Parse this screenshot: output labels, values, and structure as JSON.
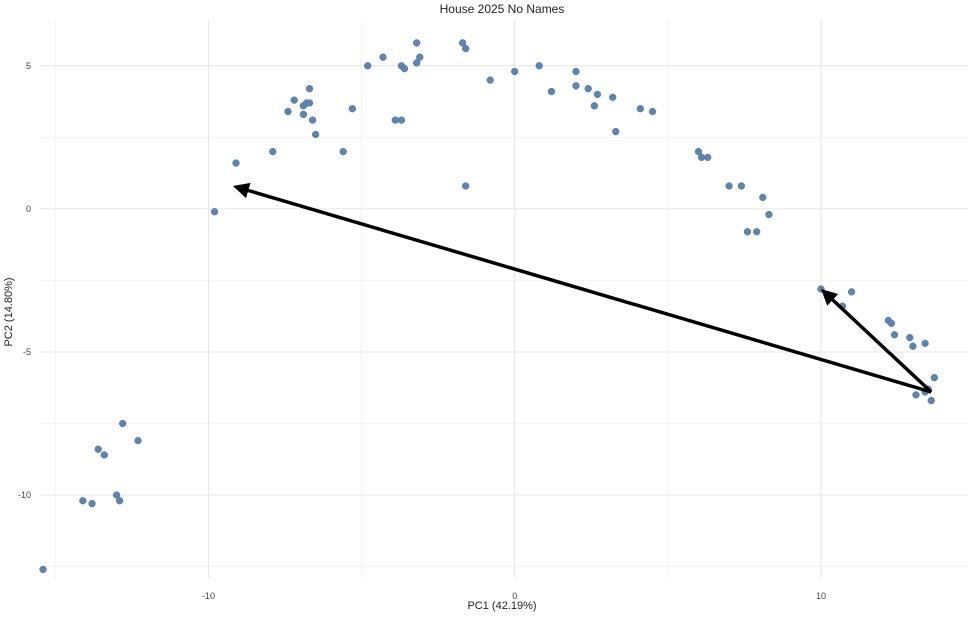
{
  "chart_data": {
    "type": "scatter",
    "title": "House 2025 No Names",
    "xlabel": "PC1 (42.19%)",
    "ylabel": "PC2 (14.80%)",
    "xlim": [
      -15.5,
      14.8
    ],
    "ylim": [
      -12.9,
      6.6
    ],
    "xticks": [
      -10,
      0,
      10
    ],
    "yticks": [
      5,
      0,
      -5,
      -10
    ],
    "grid": true,
    "point_color": "#5f84ad",
    "points": [
      {
        "x": -15.4,
        "y": -12.6
      },
      {
        "x": -14.1,
        "y": -10.2
      },
      {
        "x": -13.8,
        "y": -10.3
      },
      {
        "x": -13.0,
        "y": -10.0
      },
      {
        "x": -12.9,
        "y": -10.2
      },
      {
        "x": -13.6,
        "y": -8.4
      },
      {
        "x": -13.4,
        "y": -8.6
      },
      {
        "x": -12.8,
        "y": -7.5
      },
      {
        "x": -12.3,
        "y": -8.1
      },
      {
        "x": -9.8,
        "y": -0.1
      },
      {
        "x": -9.1,
        "y": 1.6
      },
      {
        "x": -7.9,
        "y": 2.0
      },
      {
        "x": -7.4,
        "y": 3.4
      },
      {
        "x": -7.2,
        "y": 3.8
      },
      {
        "x": -6.9,
        "y": 3.3
      },
      {
        "x": -6.9,
        "y": 3.6
      },
      {
        "x": -6.8,
        "y": 3.7
      },
      {
        "x": -6.7,
        "y": 3.7
      },
      {
        "x": -6.7,
        "y": 4.2
      },
      {
        "x": -6.6,
        "y": 3.1
      },
      {
        "x": -6.5,
        "y": 2.6
      },
      {
        "x": -5.6,
        "y": 2.0
      },
      {
        "x": -5.3,
        "y": 3.5
      },
      {
        "x": -4.8,
        "y": 5.0
      },
      {
        "x": -4.3,
        "y": 5.3
      },
      {
        "x": -3.9,
        "y": 3.1
      },
      {
        "x": -3.7,
        "y": 3.1
      },
      {
        "x": -3.7,
        "y": 5.0
      },
      {
        "x": -3.6,
        "y": 4.9
      },
      {
        "x": -3.2,
        "y": 5.1
      },
      {
        "x": -3.1,
        "y": 5.3
      },
      {
        "x": -3.2,
        "y": 5.8
      },
      {
        "x": -1.7,
        "y": 5.8
      },
      {
        "x": -1.6,
        "y": 5.6
      },
      {
        "x": -1.6,
        "y": 0.8
      },
      {
        "x": -0.8,
        "y": 4.5
      },
      {
        "x": 0.0,
        "y": 4.8
      },
      {
        "x": 0.8,
        "y": 5.0
      },
      {
        "x": 1.2,
        "y": 4.1
      },
      {
        "x": 2.0,
        "y": 4.8
      },
      {
        "x": 2.0,
        "y": 4.3
      },
      {
        "x": 2.4,
        "y": 4.2
      },
      {
        "x": 2.6,
        "y": 3.6
      },
      {
        "x": 2.7,
        "y": 4.0
      },
      {
        "x": 3.2,
        "y": 3.9
      },
      {
        "x": 3.3,
        "y": 2.7
      },
      {
        "x": 4.1,
        "y": 3.5
      },
      {
        "x": 4.5,
        "y": 3.4
      },
      {
        "x": 6.0,
        "y": 2.0
      },
      {
        "x": 6.1,
        "y": 1.8
      },
      {
        "x": 6.3,
        "y": 1.8
      },
      {
        "x": 7.0,
        "y": 0.8
      },
      {
        "x": 7.4,
        "y": 0.8
      },
      {
        "x": 7.6,
        "y": -0.8
      },
      {
        "x": 7.9,
        "y": -0.8
      },
      {
        "x": 8.1,
        "y": 0.4
      },
      {
        "x": 8.3,
        "y": -0.2
      },
      {
        "x": 10.0,
        "y": -2.8
      },
      {
        "x": 10.7,
        "y": -3.4
      },
      {
        "x": 11.0,
        "y": -2.9
      },
      {
        "x": 12.2,
        "y": -3.9
      },
      {
        "x": 12.3,
        "y": -4.0
      },
      {
        "x": 12.4,
        "y": -4.4
      },
      {
        "x": 12.9,
        "y": -4.5
      },
      {
        "x": 13.0,
        "y": -4.8
      },
      {
        "x": 13.4,
        "y": -4.7
      },
      {
        "x": 13.1,
        "y": -6.5
      },
      {
        "x": 13.4,
        "y": -6.4
      },
      {
        "x": 13.5,
        "y": -6.3
      },
      {
        "x": 13.6,
        "y": -6.7
      },
      {
        "x": 13.7,
        "y": -5.9
      }
    ],
    "arrows": [
      {
        "from": [
          13.6,
          -6.4
        ],
        "to": [
          -9.2,
          0.8
        ]
      },
      {
        "from": [
          13.6,
          -6.4
        ],
        "to": [
          10.0,
          -2.8
        ]
      }
    ]
  }
}
